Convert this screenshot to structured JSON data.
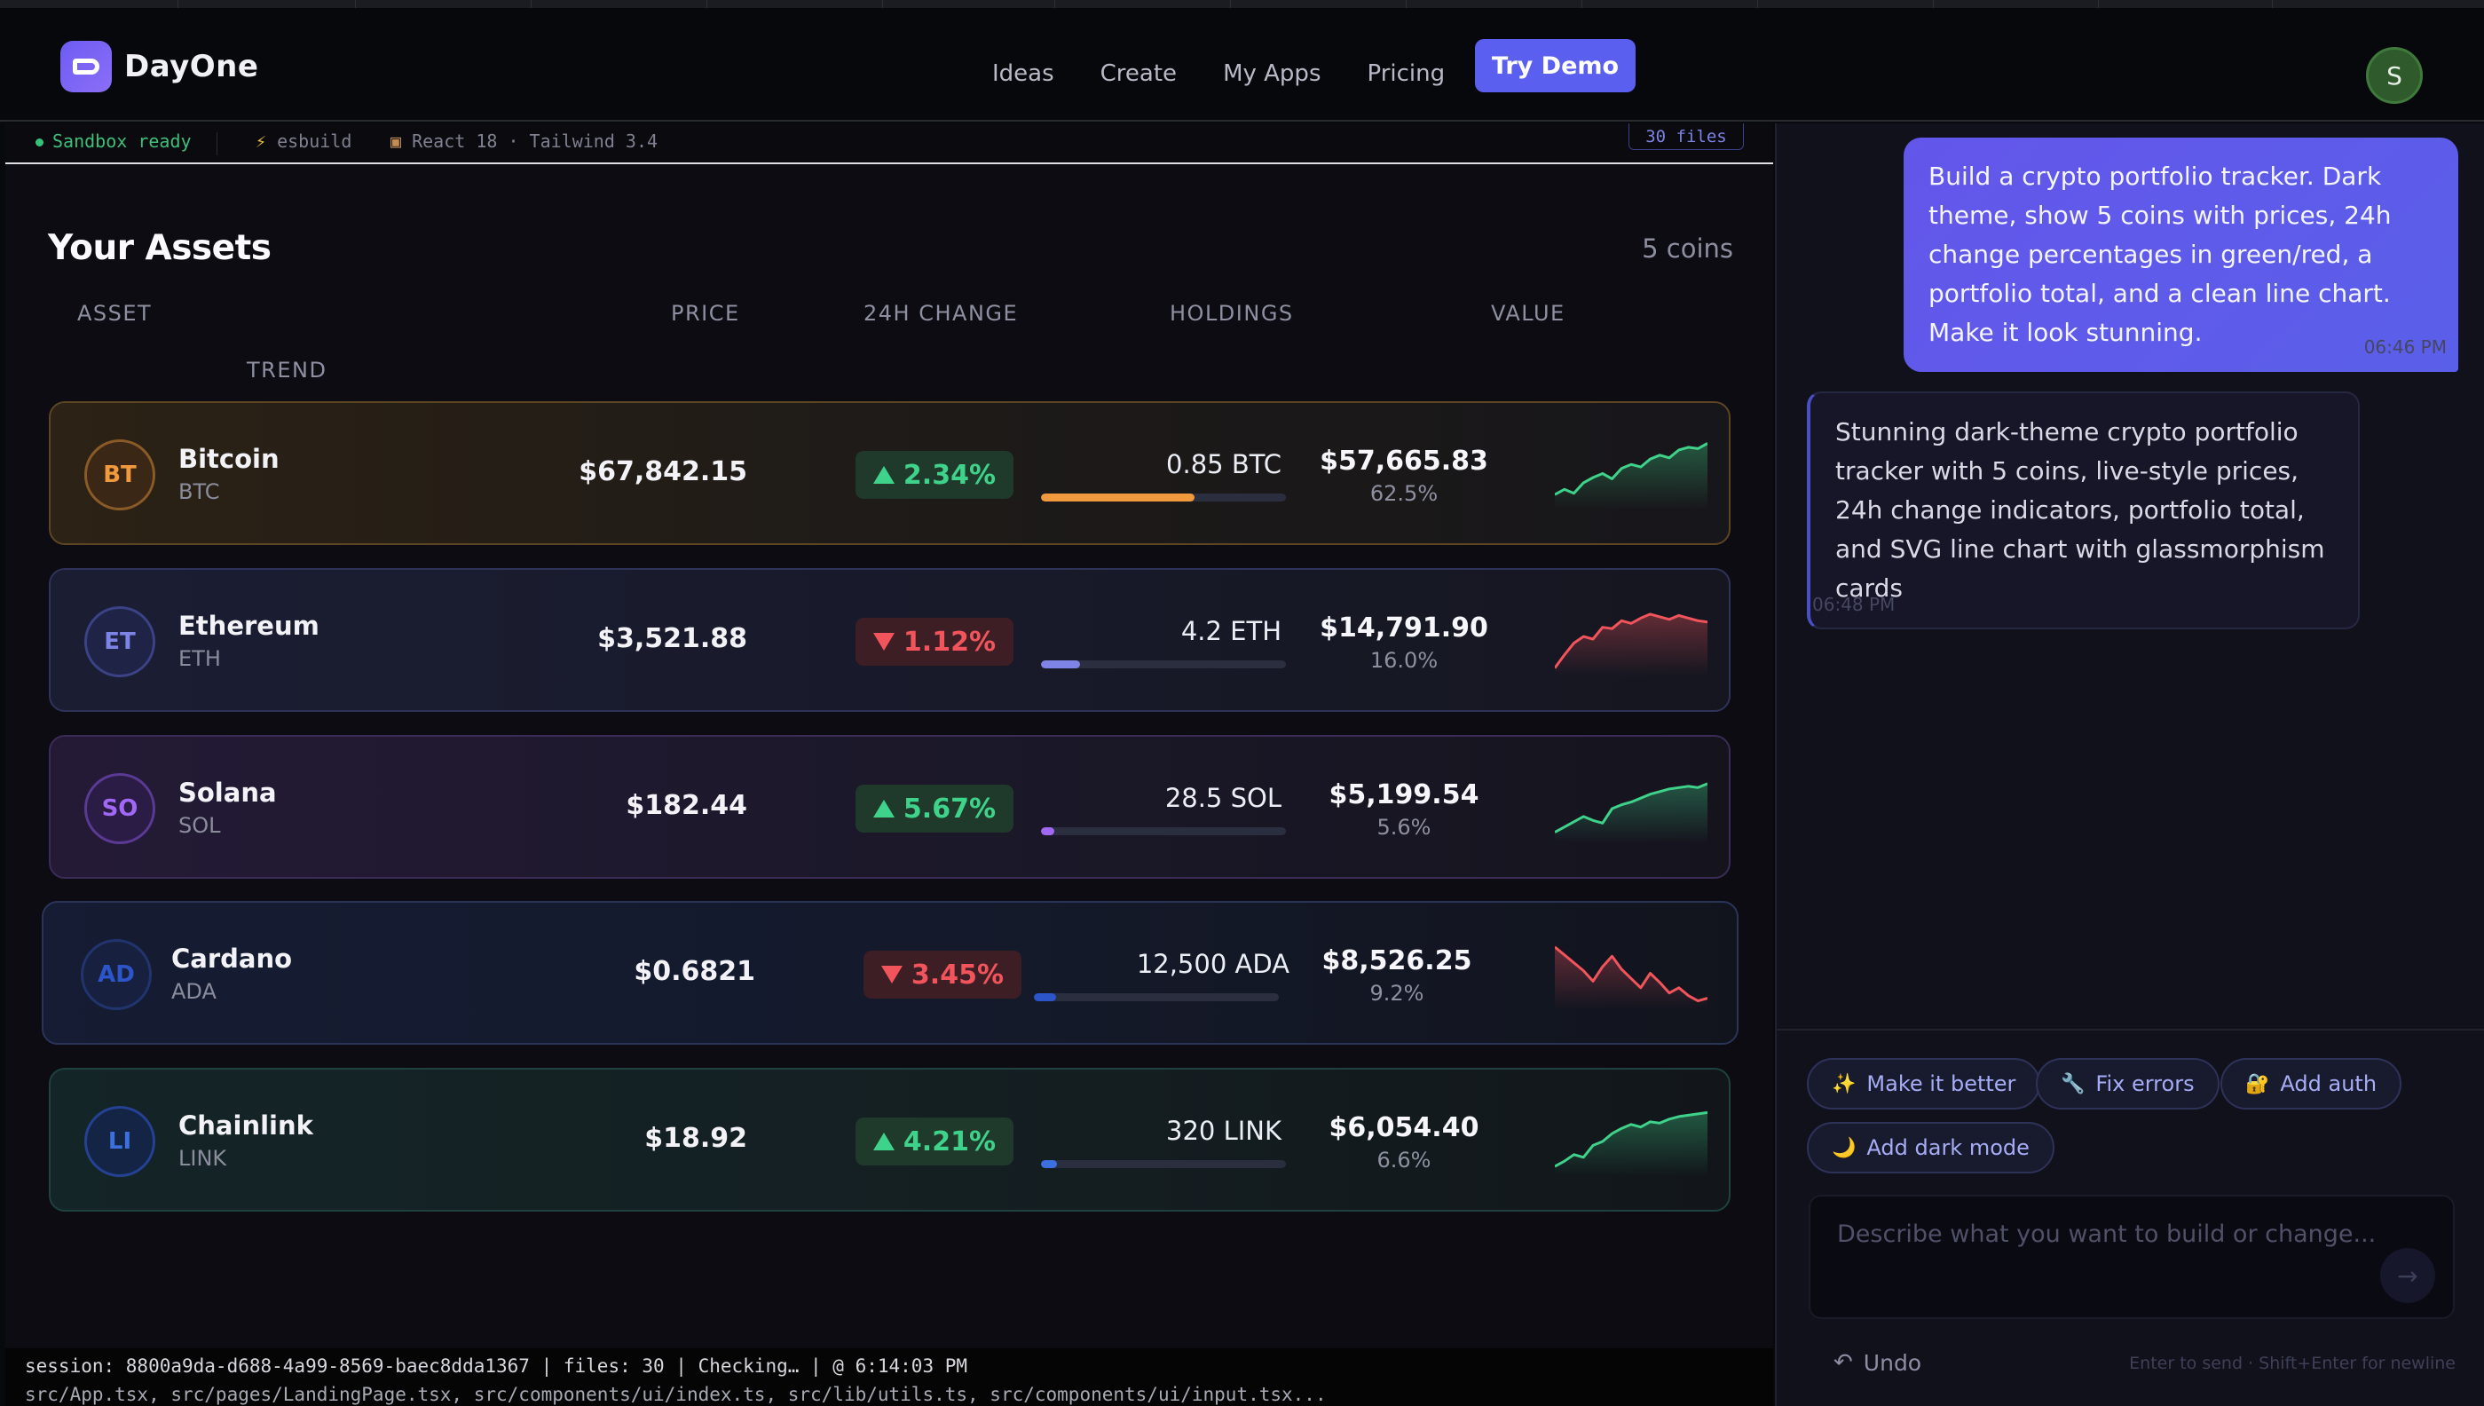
{
  "nav": {
    "brand": "DayOne",
    "links": [
      "Ideas",
      "Create",
      "My Apps",
      "Pricing"
    ],
    "cta": "Try Demo",
    "avatar_initial": "S"
  },
  "sandbox": {
    "status": "Sandbox ready",
    "bundler": "esbuild",
    "stack": "React 18 · Tailwind 3.4",
    "files": "30 files"
  },
  "assets": {
    "title": "Your Assets",
    "count": "5 coins",
    "columns": [
      "ASSET",
      "PRICE",
      "24H CHANGE",
      "HOLDINGS",
      "VALUE",
      "TREND"
    ],
    "rows": [
      {
        "initials": "BT",
        "name": "Bitcoin",
        "symbol": "BTC",
        "price": "$67,842.15",
        "change": "2.34%",
        "direction": "up",
        "holdings": "0.85 BTC",
        "value": "$57,665.83",
        "share": "62.5%",
        "share_fraction": 0.625,
        "bar_color": "#f0993d",
        "trend": [
          20,
          28,
          22,
          38,
          46,
          52,
          44,
          60,
          66,
          62,
          74,
          80,
          76,
          88,
          92,
          90,
          98
        ]
      },
      {
        "initials": "ET",
        "name": "Ethereum",
        "symbol": "ETH",
        "price": "$3,521.88",
        "change": "1.12%",
        "direction": "down",
        "holdings": "4.2 ETH",
        "value": "$14,791.90",
        "share": "16.0%",
        "share_fraction": 0.16,
        "bar_color": "#7d84e6",
        "trend": [
          10,
          30,
          48,
          58,
          54,
          72,
          70,
          82,
          78,
          86,
          92,
          88,
          84,
          90,
          86,
          82,
          80
        ]
      },
      {
        "initials": "SO",
        "name": "Solana",
        "symbol": "SOL",
        "price": "$182.44",
        "change": "5.67%",
        "direction": "up",
        "holdings": "28.5 SOL",
        "value": "$5,199.54",
        "share": "5.6%",
        "share_fraction": 0.056,
        "bar_color": "#a168f5",
        "trend": [
          14,
          22,
          30,
          38,
          32,
          28,
          50,
          56,
          60,
          66,
          72,
          76,
          80,
          82,
          84,
          82,
          88
        ]
      },
      {
        "initials": "AD",
        "name": "Cardano",
        "symbol": "ADA",
        "price": "$0.6821",
        "change": "3.45%",
        "direction": "down",
        "holdings": "12,500 ADA",
        "value": "$8,526.25",
        "share": "9.2%",
        "share_fraction": 0.092,
        "bar_color": "#2c55c9",
        "trend": [
          92,
          80,
          68,
          56,
          40,
          62,
          78,
          58,
          44,
          30,
          52,
          38,
          22,
          30,
          18,
          10,
          14
        ]
      },
      {
        "initials": "LI",
        "name": "Chainlink",
        "symbol": "LINK",
        "price": "$18.92",
        "change": "4.21%",
        "direction": "up",
        "holdings": "320 LINK",
        "value": "$6,054.40",
        "share": "6.6%",
        "share_fraction": 0.066,
        "bar_color": "#3c6fe0",
        "trend": [
          12,
          20,
          30,
          26,
          44,
          50,
          62,
          70,
          76,
          72,
          80,
          78,
          84,
          88,
          90,
          92,
          94
        ]
      }
    ]
  },
  "status": {
    "line1": "session: 8800a9da-d688-4a99-8569-baec8dda1367 | files: 30 | Checking… | @ 6:14:03 PM",
    "line2": "src/App.tsx, src/pages/LandingPage.tsx, src/components/ui/index.ts, src/lib/utils.ts, src/components/ui/input.tsx..."
  },
  "chat": {
    "user_message": "Build a crypto portfolio tracker. Dark theme, show 5 coins with prices, 24h change percentages in green/red, a portfolio total, and a clean line chart. Make it look stunning.",
    "user_time": "06:46 PM",
    "ai_message": "Stunning dark-theme crypto portfolio tracker with 5 coins, live-style prices, 24h change indicators, portfolio total, and SVG line chart with glassmorphism cards",
    "ai_time": "06:48 PM",
    "chips": [
      {
        "icon": "✨",
        "label": "Make it better"
      },
      {
        "icon": "🔧",
        "label": "Fix errors"
      },
      {
        "icon": "🔐",
        "label": "Add auth"
      },
      {
        "icon": "🌙",
        "label": "Add dark mode"
      }
    ],
    "placeholder": "Describe what you want to build or change...",
    "undo": "Undo",
    "hint": "Enter to send · Shift+Enter for newline"
  },
  "colors": {
    "up": "#3fd28a",
    "down": "#f2545c",
    "accent": "#5b5ff0"
  }
}
